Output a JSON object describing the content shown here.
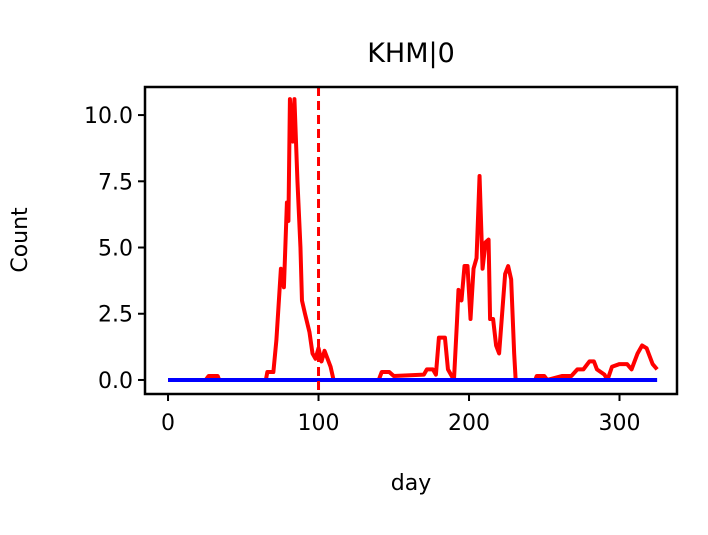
{
  "chart_data": {
    "type": "line",
    "title": "KHM|0",
    "x_label": "day",
    "y_label": "Count",
    "xlim": [
      -15.3,
      338.2
    ],
    "ylim": [
      -0.53,
      11.06
    ],
    "xticks": [
      0,
      100,
      200,
      300
    ],
    "yticks": [
      {
        "value": 0,
        "label": "0.0"
      },
      2.5,
      {
        "value": 5,
        "label": "5.0"
      },
      7.5,
      {
        "value": 10,
        "label": "10.0"
      }
    ],
    "vline": {
      "x": 100,
      "color": "#ff0000",
      "dashed": true
    },
    "series": [
      {
        "color": "#ff0000",
        "x": [
          0,
          25,
          27,
          33,
          34,
          65,
          66,
          70,
          72,
          75,
          77,
          79,
          80,
          81,
          83,
          84,
          86,
          88,
          89,
          91,
          94,
          96,
          98,
          100,
          102,
          104,
          108,
          110,
          140,
          142,
          147,
          150,
          170,
          172,
          176,
          178,
          180,
          184,
          186,
          190,
          192,
          193,
          195,
          197,
          199,
          201,
          203,
          205,
          207,
          209,
          211,
          213,
          214,
          216,
          218,
          220,
          222,
          224,
          226,
          228,
          230,
          231,
          244,
          245,
          250,
          252,
          262,
          268,
          272,
          276,
          280,
          283,
          285,
          290,
          292,
          295,
          300,
          305,
          308,
          312,
          315,
          318,
          322,
          325
        ],
        "values": [
          0,
          0,
          0.15,
          0.15,
          0,
          0,
          0.3,
          0.3,
          1.5,
          4.2,
          3.5,
          6.7,
          6,
          10.6,
          9,
          10.6,
          7.5,
          5,
          3,
          2.5,
          1.8,
          1,
          0.8,
          1.2,
          0.7,
          1.1,
          0.5,
          0,
          0,
          0.3,
          0.3,
          0.15,
          0.2,
          0.4,
          0.4,
          0.2,
          1.6,
          1.6,
          0.4,
          0,
          2.2,
          3.4,
          3,
          4.3,
          4.3,
          2.3,
          4.2,
          4.6,
          7.7,
          4.2,
          5.2,
          5.3,
          2.3,
          2.3,
          1.3,
          1,
          2.5,
          4,
          4.3,
          3.8,
          1,
          0,
          0,
          0.15,
          0.15,
          0,
          0.15,
          0.15,
          0.4,
          0.4,
          0.7,
          0.7,
          0.4,
          0.2,
          0,
          0.5,
          0.6,
          0.6,
          0.4,
          1,
          1.3,
          1.2,
          0.6,
          0.4
        ]
      },
      {
        "color": "#0000ff",
        "x": [
          0,
          325
        ],
        "values": [
          0,
          0
        ]
      }
    ]
  }
}
